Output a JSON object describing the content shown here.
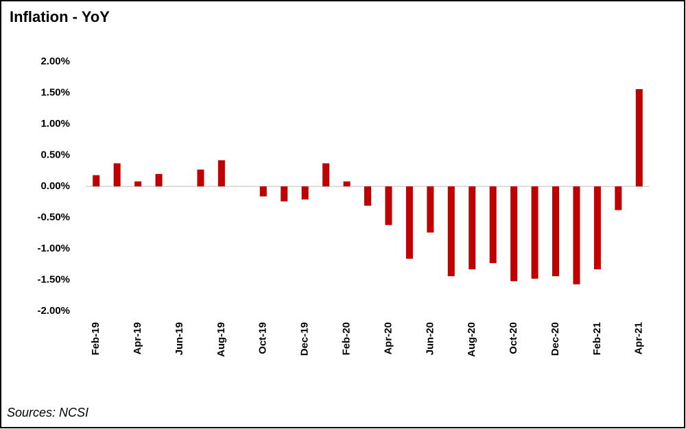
{
  "chart_data": {
    "type": "bar",
    "title": "Inflation - YoY",
    "source": "Sources: NCSI",
    "categories": [
      "Feb-19",
      null,
      "Apr-19",
      null,
      "Jun-19",
      null,
      "Aug-19",
      null,
      "Oct-19",
      null,
      "Dec-19",
      null,
      "Feb-20",
      null,
      "Apr-20",
      null,
      "Jun-20",
      null,
      "Aug-20",
      null,
      "Oct-20",
      null,
      "Dec-20",
      null,
      "Feb-21",
      null,
      "Apr-21"
    ],
    "values": [
      0.18,
      0.37,
      0.08,
      0.2,
      0,
      0.27,
      0.42,
      0,
      -0.16,
      -0.24,
      -0.21,
      0.37,
      0.08,
      -0.31,
      -0.62,
      -1.16,
      -0.74,
      -1.44,
      -1.33,
      -1.23,
      -1.52,
      -1.48,
      -1.44,
      -1.57,
      -1.33,
      -0.38,
      1.56
    ],
    "color": "#c00000",
    "ylim": [
      -2,
      2
    ],
    "yticks": [
      {
        "value": -2,
        "label": "-2.00%"
      },
      {
        "value": -1.5,
        "label": "-1.50%"
      },
      {
        "value": -1,
        "label": "-1.00%"
      },
      {
        "value": -0.5,
        "label": "-0.50%"
      },
      {
        "value": 0,
        "label": "0.00%"
      },
      {
        "value": 0.5,
        "label": "0.50%"
      },
      {
        "value": 1,
        "label": "1.00%"
      },
      {
        "value": 1.5,
        "label": "1.50%"
      },
      {
        "value": 2,
        "label": "2.00%"
      }
    ],
    "grid": false
  }
}
